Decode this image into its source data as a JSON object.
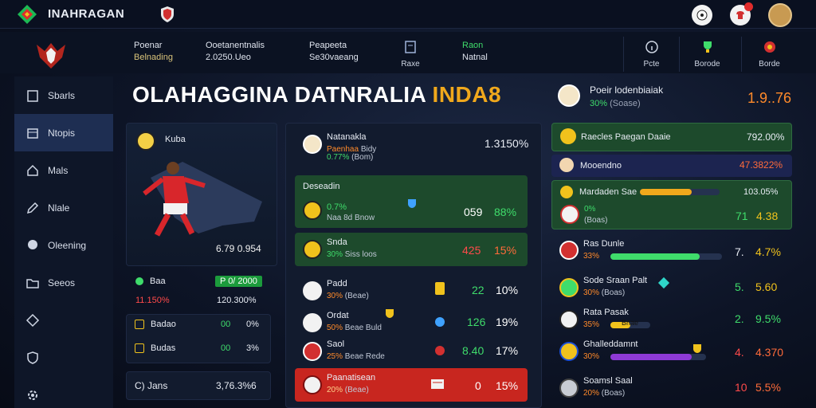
{
  "header": {
    "app_title": "INAHRAGAN"
  },
  "subbar": {
    "stats": [
      {
        "line1": "Poenar",
        "line2": "Belnading"
      },
      {
        "line1": "Ooetanentnalis",
        "line2": "2.0250.Ueo"
      },
      {
        "line1": "Peapeeta",
        "line2": "Se30vaeang"
      },
      {
        "line1": "Raon",
        "line2": "Natnal"
      }
    ],
    "buttons": [
      {
        "label": "Raxe"
      },
      {
        "label": "Pcte"
      },
      {
        "label": "Borode"
      },
      {
        "label": "Borde"
      }
    ]
  },
  "sidebar": {
    "items": [
      {
        "label": "Sbarls"
      },
      {
        "label": "Ntopis"
      },
      {
        "label": "Mals"
      },
      {
        "label": "Nlale"
      },
      {
        "label": "Oleening"
      },
      {
        "label": "Seeos"
      },
      {
        "label": ""
      },
      {
        "label": ""
      },
      {
        "label": ""
      }
    ]
  },
  "headline": {
    "main": "OLAHAGGINA DATNRALIA ",
    "accent": "INDA8"
  },
  "profile": {
    "name": "Poeir lodenbiaiak",
    "pct": "30%",
    "sub": "(Soase)",
    "score": "1.9..76"
  },
  "hero": {
    "title": "Kuba",
    "value": "6.79 0.954"
  },
  "left_rows": [
    {
      "label": "Baa",
      "tag": "P 0/ 2000",
      "v1": "",
      "v2": ""
    },
    {
      "label": "11.150%",
      "tag": "",
      "v1": "",
      "v2": "120.300%"
    },
    {
      "label": "Badao",
      "tag": "",
      "v1": "00",
      "v2": "0%"
    },
    {
      "label": "Budas",
      "tag": "",
      "v1": "00",
      "v2": "3%"
    },
    {
      "label": "C) Jans",
      "tag": "",
      "v1": "",
      "v2": "3,76.3%6"
    }
  ],
  "middle": {
    "top": {
      "title": "Natanakla",
      "sub_o": "Paenhaa",
      "sub_r": "Bidy",
      "pct": "0.77%",
      "paren": "(Bom)",
      "value": "1.3150%"
    },
    "section_label": "Deseadin",
    "rows": [
      {
        "pct": "0.7%",
        "sub": "Naa 8d Bnow",
        "v1": "059",
        "v2": "88%",
        "v1_color": "#ffffff",
        "v2_color": "#3fdc6b"
      },
      {
        "title": "Snda",
        "pct": "30%",
        "sub": "Siss loos",
        "v1": "425",
        "v2": "15%",
        "v1_color": "#ff4a4a",
        "v2_color": "#ff6b3a"
      },
      {
        "title": "Padd",
        "pct": "30%",
        "sub": "(Beae)",
        "v1": "22",
        "v2": "10%",
        "v1_color": "#3fdc6b",
        "v2_color": "#ffffff"
      },
      {
        "title": "Ordat",
        "pct": "50%",
        "sub": "Beae Buld",
        "v1": "126",
        "v2": "19%",
        "v1_color": "#3fdc6b",
        "v2_color": "#ffffff"
      },
      {
        "title": "Saol",
        "pct": "25%",
        "sub": "Beae Rede",
        "v1": "8.40",
        "v2": "17%",
        "v1_color": "#3fdc6b",
        "v2_color": "#ffffff"
      },
      {
        "title": "Paanatisean",
        "pct": "20%",
        "sub": "(Beae)",
        "v1": "0",
        "v2": "15%",
        "v1_color": "#ffffff",
        "v2_color": "#ffffff"
      }
    ]
  },
  "right": {
    "rows": [
      {
        "title": "Raecles Paegan Daaie",
        "value": "792.00%"
      },
      {
        "title": "Mooendno",
        "value": "47.3822%"
      },
      {
        "title": "Mardaden Sae",
        "value": "103.05%",
        "pct": "0%",
        "sub": "(Boas)",
        "v1": "71",
        "v2": "4.38"
      },
      {
        "title": "Ras Dunle",
        "pct": "33%",
        "v1": "7.",
        "v2": "4.7%"
      },
      {
        "title": "Sode Sraan Palt",
        "pct": "30%",
        "sub": "(Boas)",
        "v1": "5.",
        "v2": "5.60"
      },
      {
        "title": "Rata Pasak",
        "pct": "35%",
        "sub": "Bnae",
        "v1": "2.",
        "v2": "9.5%"
      },
      {
        "title": "Ghalleddamnt",
        "pct": "30%",
        "sub": "(Boas)",
        "v1": "4.",
        "v2": "4.370"
      },
      {
        "title": "Soamsl Saal",
        "pct": "20%",
        "sub": "(Boas)",
        "v1": "10",
        "v2": "5.5%"
      }
    ],
    "bars": [
      {
        "fill": 0.65,
        "color": "#f0a81c"
      },
      {
        "fill": 0.8,
        "color": "#3fdc6b"
      },
      {
        "fill": 0.5,
        "color": "#f0c21c"
      },
      {
        "fill": 0.85,
        "color": "#8e3ad6"
      }
    ]
  }
}
